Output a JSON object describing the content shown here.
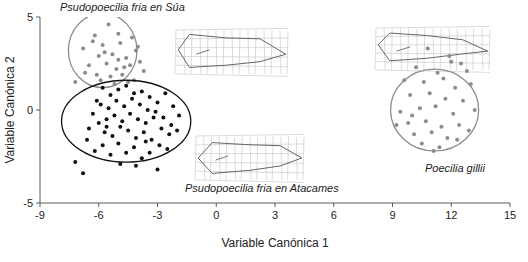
{
  "chart_data": {
    "type": "scatter",
    "x_label": "Variable Canónica 1",
    "y_label": "Variable Canónica 2",
    "xlim": [
      -9,
      15
    ],
    "xticks": [
      -9,
      -6,
      -3,
      0,
      3,
      6,
      9,
      12,
      15
    ],
    "ylim": [
      -5,
      5
    ],
    "yticks": [
      -5,
      0,
      5
    ],
    "grid": false,
    "series": [
      {
        "name": "Psudopoecilia fria en Súa",
        "color": "#8c8c8c",
        "marker": "circle",
        "x": [
          -5.5,
          -6.2,
          -5.0,
          -4.3,
          -6.8,
          -5.8,
          -4.9,
          -4.1,
          -6.0,
          -5.3,
          -4.6,
          -3.9,
          -6.5,
          -5.6,
          -5.1,
          -4.4,
          -3.7,
          -6.1,
          -5.4,
          -4.8,
          -4.2,
          -6.7,
          -5.9,
          -5.2,
          -4.5,
          -5.7,
          -4.0,
          -6.3,
          -5.0,
          -4.7,
          -7.2
        ],
        "values": [
          4.6,
          4.0,
          4.1,
          3.9,
          3.3,
          3.5,
          3.6,
          3.2,
          2.9,
          3.0,
          2.8,
          2.6,
          2.4,
          2.5,
          2.2,
          2.4,
          2.1,
          1.9,
          1.8,
          1.9,
          1.6,
          2.0,
          1.6,
          1.4,
          1.5,
          3.1,
          3.4,
          3.7,
          2.7,
          2.3,
          1.5
        ],
        "ellipse": {
          "cx": -5.8,
          "cy": 3.2,
          "rx": 1.75,
          "ry": 2.0
        }
      },
      {
        "name": "Psudopoecilia fria en Atacames",
        "color": "#111111",
        "marker": "circle",
        "x": [
          -7.2,
          -6.8,
          -6.5,
          -6.1,
          -5.8,
          -5.4,
          -5.0,
          -4.6,
          -4.2,
          -3.8,
          -3.4,
          -3.0,
          -2.6,
          -2.2,
          -1.9,
          -6.3,
          -5.9,
          -5.5,
          -5.1,
          -4.7,
          -4.3,
          -3.9,
          -3.5,
          -3.1,
          -2.7,
          -2.3,
          -6.0,
          -5.6,
          -5.2,
          -4.8,
          -4.4,
          -4.0,
          -3.6,
          -3.2,
          -2.8,
          -2.4,
          -2.0,
          -6.6,
          -5.7,
          -5.3,
          -4.9,
          -4.5,
          -4.1,
          -3.7,
          -3.3,
          -2.9,
          -2.5,
          -6.2,
          -5.8,
          -5.4,
          -5.0,
          -4.6,
          -4.2,
          -3.8,
          -3.4,
          -3.0,
          -4.9,
          -4.1,
          -3.6,
          -5.6
        ],
        "values": [
          -2.8,
          -3.4,
          -1.0,
          0.5,
          1.2,
          0.8,
          1.1,
          1.3,
          0.9,
          1.0,
          0.7,
          0.4,
          0.9,
          0.2,
          -0.3,
          -0.2,
          0.3,
          0.1,
          0.5,
          0.2,
          0.6,
          0.3,
          0.0,
          -0.1,
          -0.4,
          -0.8,
          -0.7,
          -0.5,
          -0.3,
          -0.6,
          -0.2,
          -0.5,
          -0.7,
          -0.4,
          -1.0,
          -1.3,
          -1.1,
          -1.6,
          -1.2,
          -1.4,
          -0.9,
          -1.1,
          -1.5,
          -1.2,
          -1.6,
          -1.9,
          -2.1,
          -2.2,
          -1.9,
          -2.4,
          -1.8,
          -2.3,
          -2.0,
          -2.6,
          -2.3,
          -3.2,
          -2.9,
          -3.0,
          -1.7,
          -0.9
        ],
        "ellipse": {
          "cx": -4.6,
          "cy": -0.6,
          "rx": 3.3,
          "ry": 2.2
        }
      },
      {
        "name": "Poecilia gillii",
        "color": "#8c8c8c",
        "marker": "circle",
        "x": [
          10.8,
          11.9,
          12.5,
          10.2,
          11.3,
          12.8,
          9.6,
          10.6,
          11.6,
          12.2,
          13.0,
          9.9,
          10.9,
          11.7,
          12.6,
          9.4,
          10.4,
          11.2,
          12.1,
          13.2,
          9.8,
          10.7,
          11.5,
          12.4,
          10.1,
          11.0,
          11.8,
          12.9,
          10.5,
          11.4,
          12.3,
          10.0,
          11.1,
          9.2,
          12.0
        ],
        "values": [
          3.3,
          2.9,
          2.5,
          2.3,
          2.0,
          2.1,
          1.6,
          1.5,
          1.7,
          1.2,
          1.4,
          0.8,
          0.9,
          0.6,
          0.5,
          -0.1,
          0.1,
          0.2,
          -0.2,
          0.0,
          -0.7,
          -0.6,
          -0.9,
          -0.8,
          -1.3,
          -1.2,
          -1.5,
          -1.1,
          -1.8,
          -2.0,
          -1.6,
          -0.3,
          -2.2,
          -0.8,
          2.6
        ],
        "ellipse": {
          "cx": 11.15,
          "cy": 0.0,
          "rx": 2.25,
          "ry": 2.2
        }
      }
    ]
  }
}
